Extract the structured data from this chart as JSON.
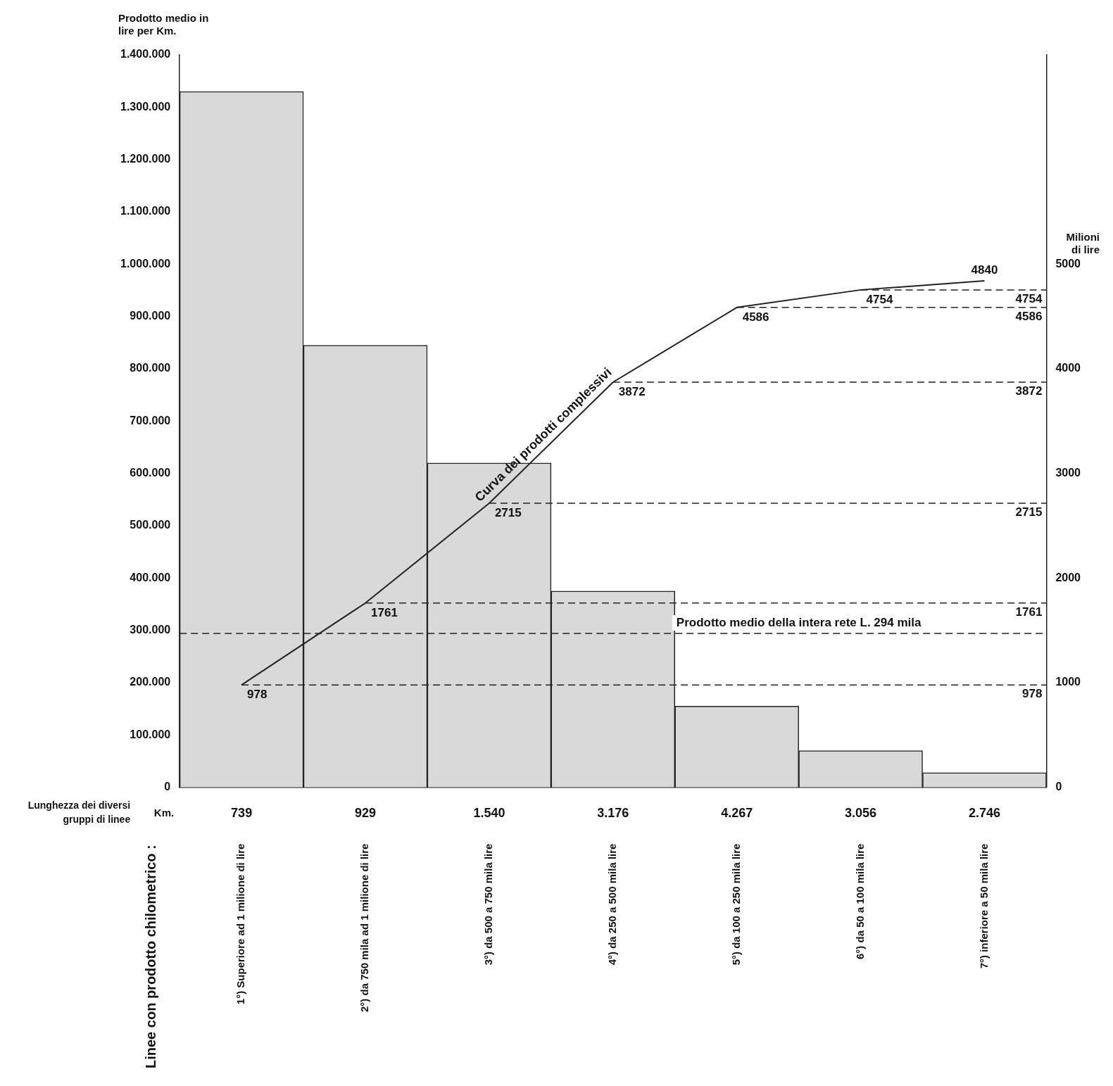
{
  "chart_data": {
    "type": "bar",
    "ylabel": "Prodotto medio in lire per Km.",
    "y2label": "Milioni di lire",
    "categories": [
      "1°) Superiore ad 1 milione di lire",
      "2°) da 750 mila ad 1 milione di lire",
      "3°) da 500 a 750 mila lire",
      "4°) da 250 a 500 mila lire",
      "5°) da 100 a 250 mila lire",
      "6°) da 50 a 100 mila lire",
      "7°) inferiore a 50 mila lire"
    ],
    "series": [
      {
        "color": "#d9d9d9",
        "values": [
          1330000,
          845000,
          620000,
          375000,
          155000,
          70000,
          28000
        ]
      },
      {
        "type": "line",
        "axis": "y2",
        "color": "#222222",
        "values": [
          978,
          1761,
          2715,
          3872,
          4586,
          4754,
          4840
        ],
        "value_labels": [
          "978",
          "1761",
          "2715",
          "3872",
          "4586",
          "4754",
          "4840"
        ]
      }
    ],
    "marker": "none",
    "line_style": "solid",
    "grid": false,
    "legend": false,
    "ylim": [
      0,
      1400000
    ],
    "yticks": [
      {
        "value": 0,
        "label": "0"
      },
      {
        "value": 100000,
        "label": "100.000"
      },
      {
        "value": 200000,
        "label": "200.000"
      },
      {
        "value": 300000,
        "label": "300.000"
      },
      {
        "value": 400000,
        "label": "400.000"
      },
      {
        "value": 500000,
        "label": "500.000"
      },
      {
        "value": 600000,
        "label": "600.000"
      },
      {
        "value": 700000,
        "label": "700.000"
      },
      {
        "value": 800000,
        "label": "800.000"
      },
      {
        "value": 900000,
        "label": "900.000"
      },
      {
        "value": 1000000,
        "label": "1.000.000"
      },
      {
        "value": 1100000,
        "label": "1.100.000"
      },
      {
        "value": 1200000,
        "label": "1.200.000"
      },
      {
        "value": 1300000,
        "label": "1.300.000"
      },
      {
        "value": 1400000,
        "label": "1.400.000"
      }
    ],
    "y2lim": [
      0,
      7000
    ],
    "y2ticks": [
      0,
      1000,
      2000,
      3000,
      4000,
      5000
    ],
    "ref_lines": [
      {
        "axis": "y",
        "value": 294000,
        "label": "Prodotto medio della intera rete L. 294 mila",
        "line_style": "dashed",
        "color": "#222222"
      },
      {
        "axis": "y2",
        "value": 978,
        "label": "978",
        "line_style": "dashed",
        "color": "#222222"
      },
      {
        "axis": "y2",
        "value": 1761,
        "label": "1761",
        "line_style": "dashed",
        "color": "#222222"
      },
      {
        "axis": "y2",
        "value": 2715,
        "label": "2715",
        "line_style": "dashed",
        "color": "#222222"
      },
      {
        "axis": "y2",
        "value": 3872,
        "label": "3872",
        "line_style": "dashed",
        "color": "#222222"
      },
      {
        "axis": "y2",
        "value": 4586,
        "label": "4586",
        "line_style": "dashed",
        "color": "#222222"
      },
      {
        "axis": "y2",
        "value": 4754,
        "label": "4754",
        "line_style": "dashed",
        "color": "#222222"
      }
    ],
    "annotations": [
      "Lunghezza dei diversi gruppi di linee",
      "Km.",
      "Curva dei prodotti complessivi",
      "Linee con prodotto chilometrico :",
      "739",
      "929",
      "1.540",
      "3.176",
      "4.267",
      "3.056",
      "2.746"
    ]
  }
}
